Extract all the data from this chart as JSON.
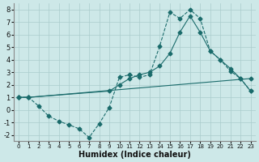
{
  "xlabel": "Humidex (Indice chaleur)",
  "xlim": [
    -0.5,
    23.5
  ],
  "ylim": [
    -2.5,
    8.5
  ],
  "xticks": [
    0,
    1,
    2,
    3,
    4,
    5,
    6,
    7,
    8,
    9,
    10,
    11,
    12,
    13,
    14,
    15,
    16,
    17,
    18,
    19,
    20,
    21,
    22,
    23
  ],
  "yticks": [
    -2,
    -1,
    0,
    1,
    2,
    3,
    4,
    5,
    6,
    7,
    8
  ],
  "bg_color": "#cde8e8",
  "line_color": "#1a6b6b",
  "grid_color": "#aacccc",
  "line1_x": [
    0,
    1,
    2,
    3,
    4,
    5,
    6,
    7,
    8,
    9,
    10,
    11,
    12,
    13,
    14,
    15,
    16,
    17,
    18,
    19,
    20,
    21,
    22,
    23
  ],
  "line1_y": [
    1.0,
    1.0,
    0.3,
    -0.5,
    -0.9,
    -1.2,
    -1.5,
    -2.2,
    -1.1,
    0.2,
    2.6,
    2.8,
    2.6,
    2.8,
    5.1,
    7.8,
    7.3,
    8.0,
    7.3,
    4.7,
    4.0,
    3.1,
    2.5,
    1.5
  ],
  "line1_style": "--",
  "line2_x": [
    0,
    1,
    9,
    10,
    11,
    12,
    13,
    14,
    15,
    16,
    17,
    18,
    19,
    20,
    21,
    22,
    23
  ],
  "line2_y": [
    1.0,
    1.0,
    1.5,
    2.0,
    2.5,
    2.8,
    3.0,
    3.5,
    4.5,
    6.2,
    7.5,
    6.2,
    4.7,
    4.0,
    3.3,
    2.5,
    1.5
  ],
  "line2_style": "-",
  "line3_x": [
    0,
    1,
    23
  ],
  "line3_y": [
    1.0,
    1.0,
    2.5
  ],
  "line3_style": "-"
}
